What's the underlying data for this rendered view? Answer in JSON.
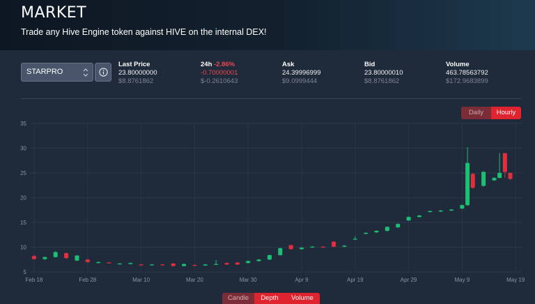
{
  "header": {
    "title": "MARKET",
    "subtitle": "Trade any Hive Engine token against HIVE on the internal DEX!"
  },
  "token_select": {
    "selected": "STARPRO"
  },
  "stats": {
    "last_price": {
      "label": "Last Price",
      "value": "23.80000000",
      "usd": "$8.8761862"
    },
    "change_24h": {
      "label": "24h",
      "percent": "-2.86%",
      "value": "-0.70000001",
      "usd": "$-0.2610643"
    },
    "ask": {
      "label": "Ask",
      "value": "24.39996999",
      "usd": "$9.0999444"
    },
    "bid": {
      "label": "Bid",
      "value": "23.80000010",
      "usd": "$8.8761862"
    },
    "volume": {
      "label": "Volume",
      "value": "463.78563792",
      "usd": "$172.9683899"
    }
  },
  "interval_toggle": {
    "daily": "Daily",
    "hourly": "Hourly",
    "active": "Hourly"
  },
  "bottom_tabs": {
    "candle": "Candle",
    "depth": "Depth",
    "volume": "Volume"
  },
  "colors": {
    "up": "#1dbf73",
    "down": "#e0303f",
    "accent": "#e0242f"
  },
  "chart_data": {
    "type": "candlestick",
    "ylim": [
      5,
      35
    ],
    "y_ticks": [
      5,
      10,
      15,
      20,
      25,
      30,
      35
    ],
    "x_ticks": [
      "Feb 18",
      "Feb 28",
      "Mar 10",
      "Mar 20",
      "Mar 30",
      "Apr 9",
      "Apr 19",
      "Apr 29",
      "May 9",
      "May 19"
    ],
    "x_start": "Feb 18",
    "candles": [
      {
        "t": "Feb 18",
        "o": 8.2,
        "c": 7.6,
        "h": 8.4,
        "l": 7.5
      },
      {
        "t": "Feb 20",
        "o": 7.6,
        "c": 8.0,
        "h": 8.1,
        "l": 7.4
      },
      {
        "t": "Feb 22",
        "o": 8.0,
        "c": 9.0,
        "h": 9.2,
        "l": 7.9
      },
      {
        "t": "Feb 24",
        "o": 8.8,
        "c": 7.8,
        "h": 8.9,
        "l": 7.6
      },
      {
        "t": "Feb 26",
        "o": 7.3,
        "c": 8.3,
        "h": 8.4,
        "l": 7.2
      },
      {
        "t": "Feb 28",
        "o": 7.5,
        "c": 7.0,
        "h": 7.6,
        "l": 6.9
      },
      {
        "t": "Mar 2",
        "o": 6.8,
        "c": 7.0,
        "h": 7.1,
        "l": 6.7
      },
      {
        "t": "Mar 4",
        "o": 6.9,
        "c": 6.8,
        "h": 7.0,
        "l": 6.7
      },
      {
        "t": "Mar 6",
        "o": 6.6,
        "c": 6.7,
        "h": 6.8,
        "l": 6.5
      },
      {
        "t": "Mar 8",
        "o": 6.6,
        "c": 6.8,
        "h": 6.9,
        "l": 6.5
      },
      {
        "t": "Mar 10",
        "o": 6.5,
        "c": 6.4,
        "h": 6.6,
        "l": 6.3
      },
      {
        "t": "Mar 12",
        "o": 6.4,
        "c": 6.5,
        "h": 6.6,
        "l": 6.3
      },
      {
        "t": "Mar 14",
        "o": 6.5,
        "c": 6.4,
        "h": 6.6,
        "l": 6.3
      },
      {
        "t": "Mar 16",
        "o": 6.7,
        "c": 6.2,
        "h": 6.8,
        "l": 6.1
      },
      {
        "t": "Mar 18",
        "o": 6.2,
        "c": 6.6,
        "h": 6.7,
        "l": 6.1
      },
      {
        "t": "Mar 20",
        "o": 6.4,
        "c": 6.3,
        "h": 6.5,
        "l": 6.2
      },
      {
        "t": "Mar 22",
        "o": 6.3,
        "c": 6.5,
        "h": 6.6,
        "l": 6.2
      },
      {
        "t": "Mar 24",
        "o": 6.5,
        "c": 6.6,
        "h": 7.4,
        "l": 6.4
      },
      {
        "t": "Mar 26",
        "o": 6.8,
        "c": 6.5,
        "h": 6.9,
        "l": 6.4
      },
      {
        "t": "Mar 28",
        "o": 6.9,
        "c": 6.5,
        "h": 7.0,
        "l": 6.4
      },
      {
        "t": "Mar 30",
        "o": 6.8,
        "c": 7.2,
        "h": 7.3,
        "l": 6.7
      },
      {
        "t": "Apr 1",
        "o": 7.2,
        "c": 7.5,
        "h": 7.6,
        "l": 7.1
      },
      {
        "t": "Apr 3",
        "o": 7.5,
        "c": 8.4,
        "h": 8.5,
        "l": 7.4
      },
      {
        "t": "Apr 5",
        "o": 8.4,
        "c": 9.8,
        "h": 9.9,
        "l": 8.3
      },
      {
        "t": "Apr 7",
        "o": 10.4,
        "c": 9.6,
        "h": 10.5,
        "l": 9.5
      },
      {
        "t": "Apr 9",
        "o": 9.6,
        "c": 9.9,
        "h": 10.0,
        "l": 9.5
      },
      {
        "t": "Apr 11",
        "o": 10.0,
        "c": 10.1,
        "h": 10.2,
        "l": 9.9
      },
      {
        "t": "Apr 13",
        "o": 10.1,
        "c": 10.0,
        "h": 10.2,
        "l": 9.9
      },
      {
        "t": "Apr 15",
        "o": 11.1,
        "c": 10.1,
        "h": 11.2,
        "l": 10.0
      },
      {
        "t": "Apr 17",
        "o": 10.1,
        "c": 10.3,
        "h": 10.4,
        "l": 10.0
      },
      {
        "t": "Apr 19",
        "o": 11.6,
        "c": 11.7,
        "h": 12.2,
        "l": 11.5
      },
      {
        "t": "Apr 21",
        "o": 12.7,
        "c": 12.9,
        "h": 13.0,
        "l": 12.6
      },
      {
        "t": "Apr 23",
        "o": 13.0,
        "c": 13.3,
        "h": 13.4,
        "l": 12.9
      },
      {
        "t": "Apr 25",
        "o": 13.3,
        "c": 14.1,
        "h": 14.2,
        "l": 13.2
      },
      {
        "t": "Apr 27",
        "o": 14.0,
        "c": 14.7,
        "h": 14.8,
        "l": 13.9
      },
      {
        "t": "Apr 29",
        "o": 15.4,
        "c": 16.1,
        "h": 16.2,
        "l": 15.3
      },
      {
        "t": "May 1",
        "o": 16.1,
        "c": 16.4,
        "h": 16.5,
        "l": 16.0
      },
      {
        "t": "May 3",
        "o": 17.1,
        "c": 17.3,
        "h": 17.4,
        "l": 17.0
      },
      {
        "t": "May 5",
        "o": 17.2,
        "c": 17.4,
        "h": 17.5,
        "l": 17.1
      },
      {
        "t": "May 7",
        "o": 17.4,
        "c": 17.6,
        "h": 17.7,
        "l": 17.3
      },
      {
        "t": "May 9",
        "o": 17.8,
        "c": 18.5,
        "h": 18.6,
        "l": 17.7
      },
      {
        "t": "May 10",
        "o": 18.5,
        "c": 27.0,
        "h": 30.2,
        "l": 18.3
      },
      {
        "t": "May 11",
        "o": 24.8,
        "c": 22.0,
        "h": 25.0,
        "l": 21.8
      },
      {
        "t": "May 13",
        "o": 22.4,
        "c": 25.2,
        "h": 25.4,
        "l": 22.2
      },
      {
        "t": "May 15",
        "o": 23.5,
        "c": 24.0,
        "h": 24.1,
        "l": 23.4
      },
      {
        "t": "May 16",
        "o": 24.0,
        "c": 25.0,
        "h": 29.0,
        "l": 23.9
      },
      {
        "t": "May 17",
        "o": 29.0,
        "c": 25.2,
        "h": 29.0,
        "l": 24.0
      },
      {
        "t": "May 18",
        "o": 25.0,
        "c": 23.8,
        "h": 25.1,
        "l": 23.6
      }
    ]
  }
}
